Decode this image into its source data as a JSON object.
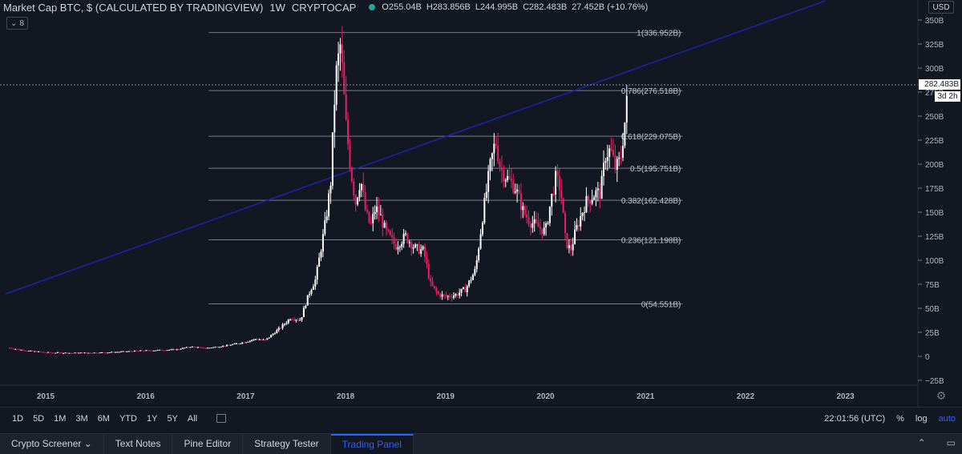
{
  "header": {
    "title": "Market Cap BTC, $ (CALCULATED BY TRADINGVIEW)",
    "interval": "1W",
    "source": "CRYPTOCAP",
    "open": "O255.04B",
    "high": "H283.856B",
    "low": "L244.995B",
    "close": "C282.483B",
    "change": "27.452B (+10.76%)"
  },
  "indicator_toggle": "8",
  "currency_badge": "USD",
  "price_label": "282.483B",
  "countdown_label": "3d 2h",
  "colors": {
    "background": "#131722",
    "up": "#ffffff",
    "down": "#e91e63",
    "trendline": "#1e22aa",
    "fib": "#787b86"
  },
  "chart_data": {
    "type": "candlestick",
    "x_ticks": [
      "2015",
      "2016",
      "2017",
      "2018",
      "2019",
      "2020",
      "2021",
      "2022",
      "2023"
    ],
    "y_ticks": [
      "−25B",
      "0",
      "25B",
      "50B",
      "75B",
      "100B",
      "125B",
      "150B",
      "175B",
      "200B",
      "225B",
      "250B",
      "275B",
      "300B",
      "325B",
      "350B"
    ],
    "ylim": [
      -30,
      355
    ],
    "fib_levels": [
      {
        "label": "1(336.952B)",
        "value": 336.952
      },
      {
        "label": "0.786(276.518B)",
        "value": 276.518
      },
      {
        "label": "0.618(229.075B)",
        "value": 229.075
      },
      {
        "label": "0.5(195.751B)",
        "value": 195.751
      },
      {
        "label": "0.382(162.428B)",
        "value": 162.428
      },
      {
        "label": "0.236(121.198B)",
        "value": 121.198
      },
      {
        "label": "0(54.551B)",
        "value": 54.551
      }
    ],
    "trendline": {
      "start": [
        2014.6,
        65
      ],
      "end": [
        2022.8,
        370
      ]
    },
    "path": [
      [
        2014.62,
        9
      ],
      [
        2014.8,
        6
      ],
      [
        2015.0,
        4
      ],
      [
        2015.3,
        3.5
      ],
      [
        2015.6,
        4
      ],
      [
        2015.8,
        5
      ],
      [
        2016.0,
        6
      ],
      [
        2016.3,
        7
      ],
      [
        2016.45,
        10
      ],
      [
        2016.6,
        8.5
      ],
      [
        2016.8,
        11
      ],
      [
        2017.0,
        15
      ],
      [
        2017.1,
        18
      ],
      [
        2017.2,
        17
      ],
      [
        2017.35,
        30
      ],
      [
        2017.45,
        40
      ],
      [
        2017.55,
        38
      ],
      [
        2017.6,
        55
      ],
      [
        2017.65,
        70
      ],
      [
        2017.7,
        80
      ],
      [
        2017.75,
        110
      ],
      [
        2017.8,
        140
      ],
      [
        2017.85,
        180
      ],
      [
        2017.9,
        290
      ],
      [
        2017.95,
        325
      ],
      [
        2018.0,
        245
      ],
      [
        2018.05,
        195
      ],
      [
        2018.1,
        160
      ],
      [
        2018.15,
        185
      ],
      [
        2018.2,
        150
      ],
      [
        2018.25,
        135
      ],
      [
        2018.3,
        155
      ],
      [
        2018.35,
        145
      ],
      [
        2018.4,
        130
      ],
      [
        2018.5,
        115
      ],
      [
        2018.6,
        125
      ],
      [
        2018.7,
        112
      ],
      [
        2018.78,
        110
      ],
      [
        2018.85,
        75
      ],
      [
        2018.92,
        65
      ],
      [
        2019.0,
        62
      ],
      [
        2019.1,
        64
      ],
      [
        2019.2,
        70
      ],
      [
        2019.3,
        90
      ],
      [
        2019.37,
        145
      ],
      [
        2019.45,
        200
      ],
      [
        2019.5,
        225
      ],
      [
        2019.55,
        195
      ],
      [
        2019.62,
        185
      ],
      [
        2019.7,
        175
      ],
      [
        2019.78,
        150
      ],
      [
        2019.85,
        140
      ],
      [
        2019.92,
        135
      ],
      [
        2020.0,
        130
      ],
      [
        2020.05,
        160
      ],
      [
        2020.1,
        185
      ],
      [
        2020.15,
        175
      ],
      [
        2020.2,
        120
      ],
      [
        2020.25,
        110
      ],
      [
        2020.3,
        130
      ],
      [
        2020.4,
        160
      ],
      [
        2020.5,
        170
      ],
      [
        2020.55,
        170
      ],
      [
        2020.6,
        210
      ],
      [
        2020.65,
        215
      ],
      [
        2020.7,
        195
      ],
      [
        2020.75,
        205
      ],
      [
        2020.8,
        250
      ],
      [
        2020.83,
        282.5
      ]
    ]
  },
  "range_buttons": [
    "1D",
    "5D",
    "1M",
    "3M",
    "6M",
    "YTD",
    "1Y",
    "5Y",
    "All"
  ],
  "clock": "22:01:56 (UTC)",
  "scale_options": {
    "percent": "%",
    "log": "log",
    "auto": "auto"
  },
  "bottom_tabs": [
    "Crypto Screener",
    "Text Notes",
    "Pine Editor",
    "Strategy Tester",
    "Trading Panel"
  ],
  "bottom_icons": {
    "collapse": "collapse-icon",
    "maximize": "maximize-icon"
  }
}
